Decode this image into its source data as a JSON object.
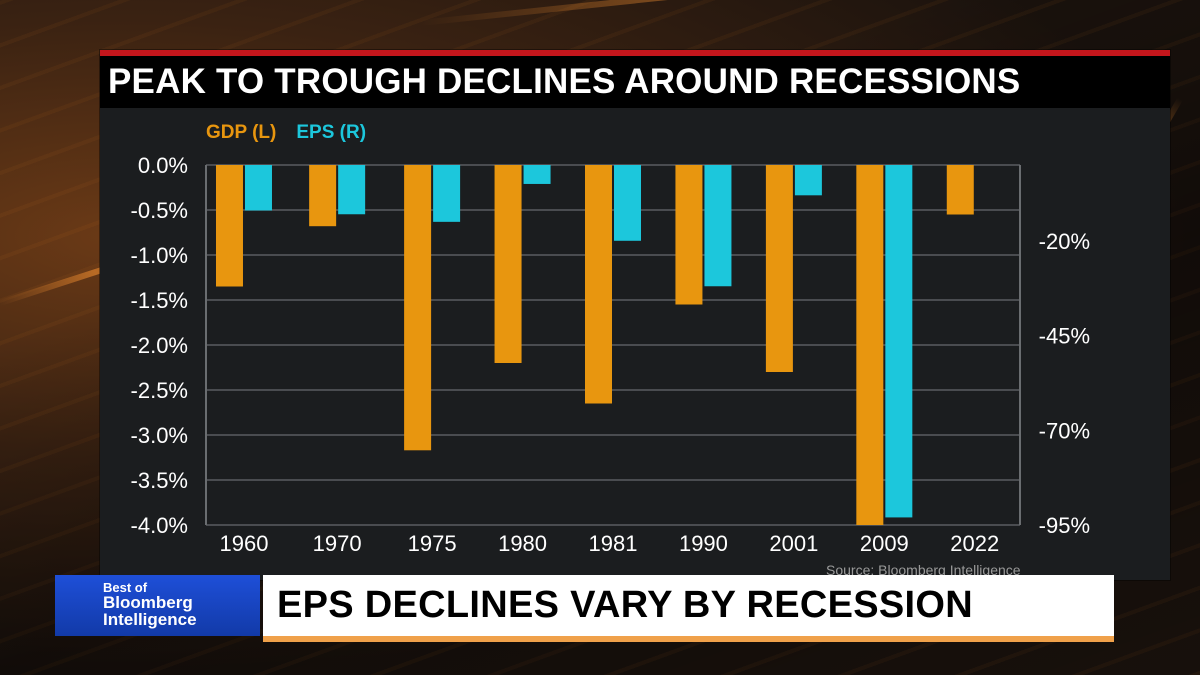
{
  "title": "PEAK TO TROUGH DECLINES AROUND RECESSIONS",
  "source": "Source: Bloomberg Intelligence",
  "lower_third": {
    "logo_line1": "Best of",
    "logo_line2": "Bloomberg",
    "logo_line3": "Intelligence",
    "headline": "EPS DECLINES VARY BY RECESSION"
  },
  "colors": {
    "gdp": "#e8960f",
    "eps": "#1cc7dc",
    "accent_red": "#c4161c",
    "underline_orange": "#f0a14a"
  },
  "chart_data": {
    "type": "bar",
    "categories": [
      "1960",
      "1970",
      "1975",
      "1980",
      "1981",
      "1990",
      "2001",
      "2009",
      "2022"
    ],
    "series": [
      {
        "name": "GDP (L)",
        "axis": "left",
        "values": [
          -1.35,
          -0.68,
          -3.17,
          -2.2,
          -2.65,
          -1.55,
          -2.3,
          -4.0,
          -0.55
        ]
      },
      {
        "name": "EPS (R)",
        "axis": "right",
        "values": [
          -12,
          -13,
          -15,
          -5,
          -20,
          -32,
          -8,
          -93,
          null
        ]
      }
    ],
    "left_axis": {
      "ylim": [
        -4.0,
        0.0
      ],
      "ticks": [
        "0.0%",
        "-0.5%",
        "-1.0%",
        "-1.5%",
        "-2.0%",
        "-2.5%",
        "-3.0%",
        "-3.5%",
        "-4.0%"
      ]
    },
    "right_axis": {
      "ylim": [
        -95,
        0
      ],
      "ticks": [
        "-20%",
        "-45%",
        "-70%",
        "-95%"
      ]
    },
    "grid": true,
    "legend_position": "top-left"
  }
}
